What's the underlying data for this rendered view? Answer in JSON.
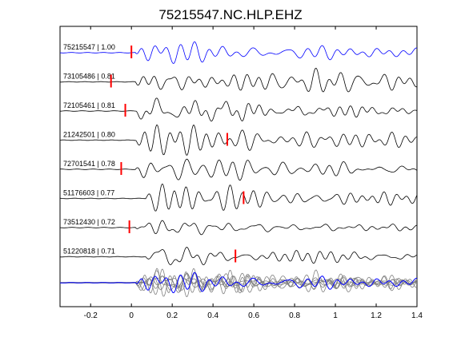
{
  "chart_data": {
    "type": "line",
    "title": "75215547.NC.HLP.EHZ",
    "xlabel": "",
    "ylabel": "",
    "xlim": [
      -0.35,
      1.4
    ],
    "x_ticks": [
      -0.2,
      0,
      0.2,
      0.4,
      0.6,
      0.8,
      1,
      1.2,
      1.4
    ],
    "x_tick_labels": [
      "-0.2",
      "0",
      "0.2",
      "0.4",
      "0.6",
      "0.8",
      "1",
      "1.2",
      "1.4"
    ],
    "grid": false,
    "colors": {
      "reference": "#0000ff",
      "trace": "#000000",
      "overlay": "#808080",
      "pick": "#ff0000"
    },
    "series": [
      {
        "label": "75215547 | 1.00",
        "pick_time": 0.0,
        "onset": 0.0,
        "reference": true
      },
      {
        "label": "73105486 | 0.81",
        "pick_time": -0.1,
        "onset": 0.0
      },
      {
        "label": "72105461 | 0.81",
        "pick_time": -0.03,
        "onset": 0.0
      },
      {
        "label": "21242501 | 0.80",
        "pick_time": 0.47,
        "onset": 0.0
      },
      {
        "label": "72701541 | 0.78",
        "pick_time": -0.05,
        "onset": 0.0
      },
      {
        "label": "51176603 | 0.77",
        "pick_time": 0.55,
        "onset": 0.05
      },
      {
        "label": "73512430 | 0.72",
        "pick_time": -0.01,
        "onset": 0.0
      },
      {
        "label": "51220818 | 0.71",
        "pick_time": 0.51,
        "onset": 0.05
      }
    ]
  }
}
